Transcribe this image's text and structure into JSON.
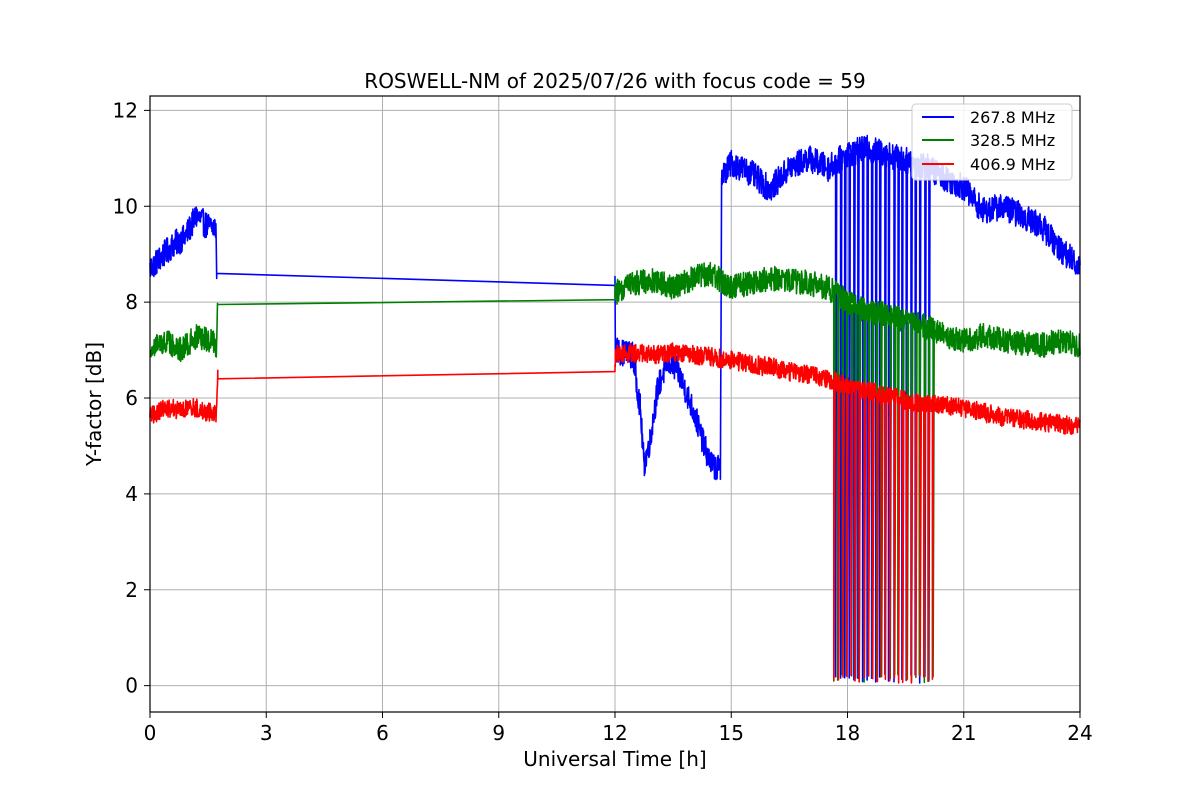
{
  "chart_data": {
    "type": "line",
    "title": "ROSWELL-NM of 2025/07/26 with focus code = 59",
    "xlabel": "Universal Time [h]",
    "ylabel": "Y-factor [dB]",
    "xlim": [
      0,
      24
    ],
    "ylim": [
      -0.55,
      12.3
    ],
    "xticks": [
      0,
      3,
      6,
      9,
      12,
      15,
      18,
      21,
      24
    ],
    "yticks": [
      0,
      2,
      4,
      6,
      8,
      10,
      12
    ],
    "grid": true,
    "legend_position": "top-right",
    "series": [
      {
        "name": "267.8 MHz",
        "color": "#0000ff",
        "x": [
          0.0,
          0.3,
          0.6,
          0.9,
          1.2,
          1.45,
          1.7,
          1.72,
          12.0,
          12.01,
          12.2,
          12.45,
          12.65,
          12.75,
          12.9,
          13.1,
          13.35,
          13.6,
          13.9,
          14.1,
          14.3,
          14.5,
          14.72,
          14.75,
          15.0,
          15.5,
          16.0,
          16.5,
          17.0,
          17.5,
          18.0,
          18.5,
          19.0,
          19.5,
          20.0,
          20.5,
          21.0,
          21.5,
          22.0,
          22.5,
          23.0,
          23.5,
          24.0
        ],
        "y": [
          8.7,
          8.95,
          9.2,
          9.35,
          9.8,
          9.6,
          9.55,
          8.6,
          8.35,
          7.0,
          6.95,
          6.9,
          5.8,
          4.6,
          5.1,
          6.2,
          6.75,
          6.6,
          6.0,
          5.55,
          5.0,
          4.6,
          4.5,
          10.6,
          10.9,
          10.7,
          10.35,
          10.8,
          11.0,
          10.8,
          11.1,
          11.2,
          11.1,
          10.95,
          10.85,
          10.6,
          10.4,
          9.9,
          10.0,
          9.8,
          9.6,
          9.1,
          8.75
        ],
        "noise": 0.28
      },
      {
        "name": "328.5 MHz",
        "color": "#008000",
        "x": [
          0.0,
          0.4,
          0.8,
          1.2,
          1.5,
          1.72,
          1.75,
          12.0,
          12.01,
          12.5,
          13.0,
          13.5,
          14.0,
          14.5,
          15.0,
          15.5,
          16.0,
          16.5,
          17.0,
          17.5,
          18.0,
          18.5,
          19.0,
          19.5,
          20.0,
          20.5,
          21.0,
          21.5,
          22.0,
          22.5,
          23.0,
          23.5,
          24.0
        ],
        "y": [
          7.1,
          7.2,
          7.0,
          7.3,
          7.2,
          7.1,
          7.95,
          8.05,
          8.2,
          8.4,
          8.45,
          8.3,
          8.5,
          8.6,
          8.3,
          8.4,
          8.5,
          8.45,
          8.4,
          8.3,
          8.0,
          7.8,
          7.75,
          7.6,
          7.5,
          7.3,
          7.2,
          7.3,
          7.2,
          7.15,
          7.1,
          7.2,
          7.1
        ],
        "noise": 0.26
      },
      {
        "name": "406.9 MHz",
        "color": "#ff0000",
        "x": [
          0.0,
          0.4,
          0.8,
          1.2,
          1.5,
          1.72,
          1.75,
          12.0,
          12.01,
          12.5,
          13.0,
          13.5,
          14.0,
          14.5,
          15.0,
          15.5,
          16.0,
          16.5,
          17.0,
          17.5,
          18.0,
          18.5,
          19.0,
          19.5,
          20.0,
          20.5,
          21.0,
          21.5,
          22.0,
          22.5,
          23.0,
          23.5,
          24.0
        ],
        "y": [
          5.6,
          5.8,
          5.75,
          5.8,
          5.7,
          5.7,
          6.4,
          6.55,
          6.9,
          6.95,
          6.9,
          6.95,
          6.9,
          6.85,
          6.8,
          6.7,
          6.65,
          6.55,
          6.5,
          6.4,
          6.25,
          6.15,
          6.05,
          5.95,
          5.9,
          5.85,
          5.8,
          5.7,
          5.6,
          5.55,
          5.5,
          5.45,
          5.4
        ],
        "noise": 0.2
      }
    ]
  }
}
